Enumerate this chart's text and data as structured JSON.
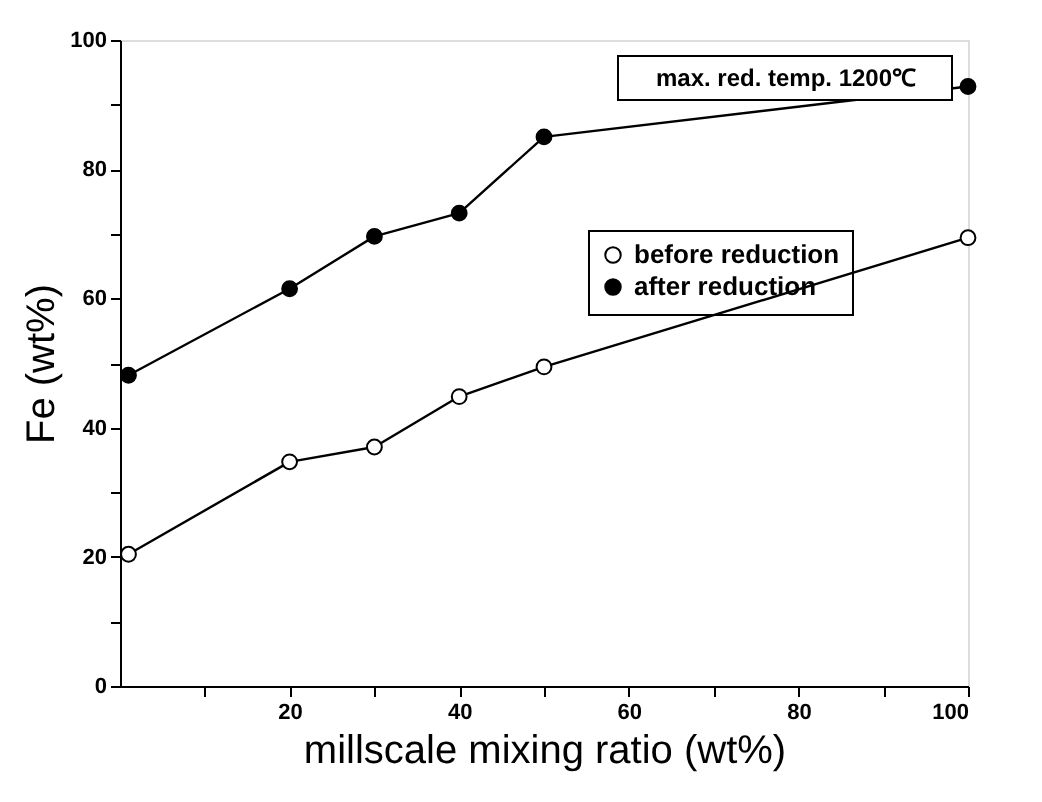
{
  "chart_data": {
    "type": "line",
    "xlabel": "millscale mixing ratio (wt%)",
    "ylabel": "Fe (wt%)",
    "x": [
      1,
      20,
      30,
      40,
      50,
      100
    ],
    "series": [
      {
        "name": "before reduction",
        "color": "#000000",
        "values": [
          20.4,
          34.7,
          37,
          44.8,
          49.4,
          69.4
        ]
      },
      {
        "name": "after reduction",
        "color": "#000000",
        "values": [
          48.1,
          61.5,
          69.6,
          73.2,
          85,
          92.8
        ]
      }
    ],
    "xlim": [
      0,
      100
    ],
    "ylim": [
      0,
      100
    ],
    "xticks": [
      {
        "value": 10,
        "label": null
      },
      20,
      {
        "value": 30,
        "label": null
      },
      40,
      {
        "value": 50,
        "label": null
      },
      60,
      {
        "value": 70,
        "label": null
      },
      80,
      {
        "value": 90,
        "label": null
      },
      100
    ],
    "yticks": [
      0,
      {
        "value": 10,
        "label": null
      },
      20,
      {
        "value": 30,
        "label": null
      },
      40,
      {
        "value": 50,
        "label": null
      },
      60,
      {
        "value": 70,
        "label": null
      },
      80,
      {
        "value": 90,
        "label": null
      },
      100
    ],
    "annotations": [
      "max. red. temp. 1200℃"
    ],
    "marker": "circle",
    "line_style": "solid",
    "grid": false,
    "legend": "top right"
  }
}
